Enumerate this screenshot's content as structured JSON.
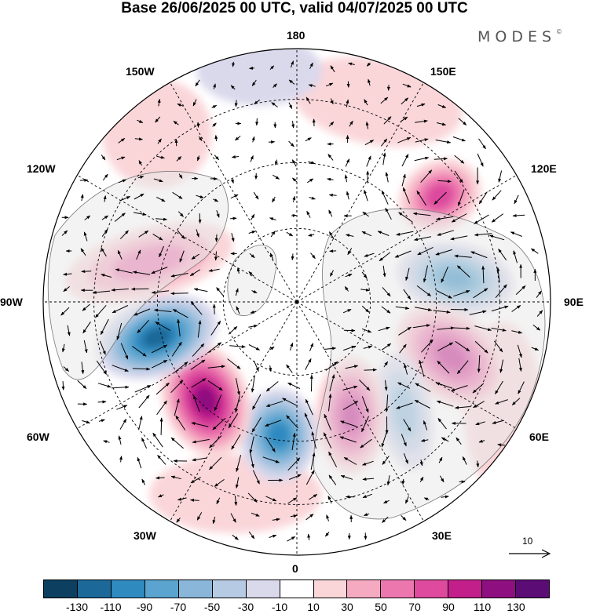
{
  "title": "Base 26/06/2025 00 UTC, valid 04/07/2025 00 UTC",
  "brand": "MODES",
  "brand_mark": "©",
  "map": {
    "projection": "north-polar-stereographic",
    "longitude_labels": {
      "top": "180",
      "top_left": "150W",
      "top_right": "150E",
      "upper_left": "120W",
      "upper_right": "120E",
      "left": "90W",
      "right": "90E",
      "lower_left": "60W",
      "lower_right": "60E",
      "bottom_left": "30W",
      "bottom_right": "30E",
      "bottom": "0"
    },
    "anomaly_centers": [
      {
        "sign": "positive",
        "level": 70,
        "region": "eastern Siberia"
      },
      {
        "sign": "negative",
        "level": -90,
        "region": "central Siberia"
      },
      {
        "sign": "positive",
        "level": 90,
        "region": "western Siberia"
      },
      {
        "sign": "negative",
        "level": -50,
        "region": "western Russia"
      },
      {
        "sign": "positive",
        "level": 90,
        "region": "Scandinavia"
      },
      {
        "sign": "negative",
        "level": -90,
        "region": "Greenland Sea"
      },
      {
        "sign": "positive",
        "level": 110,
        "region": "Greenland"
      },
      {
        "sign": "negative",
        "level": -110,
        "region": "Hudson Bay"
      },
      {
        "sign": "positive",
        "level": 50,
        "region": "western Canada"
      }
    ]
  },
  "vector_key": {
    "label": "10"
  },
  "colorbar": {
    "colors": [
      "#0d3f60",
      "#1c6898",
      "#2f8ac0",
      "#5aa4cf",
      "#8ab7d9",
      "#b7cae3",
      "#dad9ec",
      "#ffffff",
      "#fad6d9",
      "#f5aac2",
      "#ec77ae",
      "#dd4a9e",
      "#c21f8b",
      "#8e0f7f",
      "#5c0c75"
    ],
    "tick_labels": [
      "-130",
      "-110",
      "-90",
      "-70",
      "-50",
      "-30",
      "-10",
      "10",
      "30",
      "50",
      "70",
      "90",
      "110",
      "130"
    ]
  }
}
